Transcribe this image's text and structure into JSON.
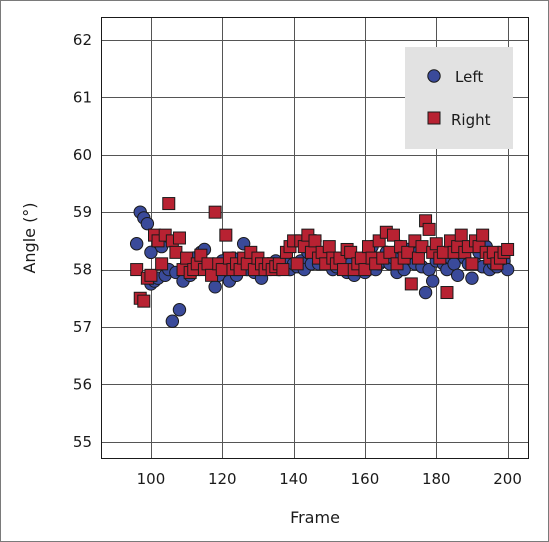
{
  "chart_data": {
    "type": "scatter",
    "title": "",
    "xlabel": "Frame",
    "ylabel": "Angle (°)",
    "xlim": [
      86,
      206
    ],
    "ylim": [
      54.7,
      62.4
    ],
    "x_ticks": [
      100,
      120,
      140,
      160,
      180,
      200
    ],
    "y_ticks": [
      55,
      56,
      57,
      58,
      59,
      60,
      61,
      62
    ],
    "grid": true,
    "legend_position": "top-right",
    "series": [
      {
        "name": "Left",
        "marker": "circle",
        "color": "#3a4a9a",
        "points": [
          [
            96,
            58.45
          ],
          [
            97,
            59.0
          ],
          [
            98,
            58.9
          ],
          [
            99,
            58.8
          ],
          [
            100,
            58.3
          ],
          [
            100,
            57.75
          ],
          [
            101,
            57.8
          ],
          [
            102,
            57.85
          ],
          [
            103,
            58.4
          ],
          [
            104,
            57.9
          ],
          [
            105,
            58.0
          ],
          [
            106,
            57.1
          ],
          [
            107,
            57.95
          ],
          [
            108,
            57.3
          ],
          [
            109,
            57.8
          ],
          [
            110,
            58.1
          ],
          [
            111,
            57.9
          ],
          [
            112,
            58.2
          ],
          [
            113,
            58.1
          ],
          [
            114,
            58.3
          ],
          [
            115,
            58.35
          ],
          [
            116,
            58.0
          ],
          [
            117,
            57.95
          ],
          [
            118,
            57.7
          ],
          [
            119,
            57.9
          ],
          [
            120,
            58.15
          ],
          [
            121,
            58.0
          ],
          [
            122,
            57.8
          ],
          [
            123,
            58.2
          ],
          [
            124,
            57.9
          ],
          [
            125,
            58.1
          ],
          [
            126,
            58.45
          ],
          [
            127,
            58.0
          ],
          [
            128,
            58.2
          ],
          [
            129,
            57.95
          ],
          [
            130,
            58.1
          ],
          [
            131,
            57.85
          ],
          [
            132,
            58.0
          ],
          [
            133,
            58.1
          ],
          [
            134,
            58.05
          ],
          [
            135,
            58.15
          ],
          [
            136,
            58.0
          ],
          [
            137,
            58.05
          ],
          [
            138,
            58.1
          ],
          [
            139,
            58.0
          ],
          [
            140,
            58.1
          ],
          [
            141,
            58.05
          ],
          [
            142,
            58.15
          ],
          [
            143,
            58.0
          ],
          [
            144,
            58.3
          ],
          [
            145,
            58.1
          ],
          [
            146,
            58.5
          ],
          [
            147,
            58.1
          ],
          [
            148,
            58.2
          ],
          [
            149,
            58.3
          ],
          [
            150,
            58.2
          ],
          [
            151,
            58.0
          ],
          [
            152,
            58.05
          ],
          [
            153,
            58.15
          ],
          [
            154,
            58.0
          ],
          [
            155,
            57.95
          ],
          [
            156,
            58.1
          ],
          [
            157,
            57.9
          ],
          [
            158,
            58.0
          ],
          [
            159,
            58.1
          ],
          [
            160,
            57.95
          ],
          [
            161,
            58.3
          ],
          [
            162,
            58.4
          ],
          [
            163,
            58.0
          ],
          [
            164,
            58.1
          ],
          [
            165,
            58.15
          ],
          [
            166,
            58.3
          ],
          [
            167,
            58.1
          ],
          [
            168,
            58.2
          ],
          [
            169,
            57.95
          ],
          [
            170,
            58.4
          ],
          [
            171,
            58.0
          ],
          [
            172,
            58.35
          ],
          [
            173,
            58.2
          ],
          [
            174,
            58.1
          ],
          [
            175,
            58.3
          ],
          [
            176,
            58.05
          ],
          [
            177,
            57.6
          ],
          [
            178,
            58.0
          ],
          [
            179,
            57.8
          ],
          [
            180,
            58.15
          ],
          [
            181,
            58.3
          ],
          [
            182,
            58.1
          ],
          [
            183,
            58.0
          ],
          [
            184,
            58.2
          ],
          [
            185,
            58.1
          ],
          [
            186,
            57.9
          ],
          [
            187,
            58.3
          ],
          [
            188,
            58.2
          ],
          [
            189,
            58.1
          ],
          [
            190,
            57.85
          ],
          [
            191,
            58.1
          ],
          [
            192,
            58.3
          ],
          [
            193,
            58.05
          ],
          [
            194,
            58.4
          ],
          [
            195,
            58.0
          ],
          [
            196,
            58.1
          ],
          [
            197,
            58.05
          ],
          [
            198,
            58.2
          ],
          [
            199,
            58.15
          ],
          [
            200,
            58.0
          ]
        ]
      },
      {
        "name": "Right",
        "marker": "square",
        "color": "#b82232",
        "points": [
          [
            96,
            58.0
          ],
          [
            97,
            57.5
          ],
          [
            98,
            57.45
          ],
          [
            99,
            57.85
          ],
          [
            100,
            57.9
          ],
          [
            101,
            58.6
          ],
          [
            102,
            58.5
          ],
          [
            103,
            58.1
          ],
          [
            104,
            58.6
          ],
          [
            105,
            59.15
          ],
          [
            106,
            58.5
          ],
          [
            107,
            58.3
          ],
          [
            108,
            58.55
          ],
          [
            109,
            58.0
          ],
          [
            110,
            58.2
          ],
          [
            111,
            57.95
          ],
          [
            112,
            58.0
          ],
          [
            113,
            58.1
          ],
          [
            114,
            58.25
          ],
          [
            115,
            58.0
          ],
          [
            116,
            58.1
          ],
          [
            117,
            57.9
          ],
          [
            118,
            59.0
          ],
          [
            119,
            58.1
          ],
          [
            120,
            58.0
          ],
          [
            121,
            58.6
          ],
          [
            122,
            58.2
          ],
          [
            123,
            58.0
          ],
          [
            124,
            58.1
          ],
          [
            125,
            58.0
          ],
          [
            126,
            58.2
          ],
          [
            127,
            58.1
          ],
          [
            128,
            58.3
          ],
          [
            129,
            58.0
          ],
          [
            130,
            58.2
          ],
          [
            131,
            58.1
          ],
          [
            132,
            58.0
          ],
          [
            133,
            58.1
          ],
          [
            134,
            58.0
          ],
          [
            135,
            58.05
          ],
          [
            136,
            58.1
          ],
          [
            137,
            58.0
          ],
          [
            138,
            58.3
          ],
          [
            139,
            58.4
          ],
          [
            140,
            58.5
          ],
          [
            141,
            58.1
          ],
          [
            142,
            58.5
          ],
          [
            143,
            58.4
          ],
          [
            144,
            58.6
          ],
          [
            145,
            58.3
          ],
          [
            146,
            58.5
          ],
          [
            147,
            58.2
          ],
          [
            148,
            58.3
          ],
          [
            149,
            58.1
          ],
          [
            150,
            58.4
          ],
          [
            151,
            58.2
          ],
          [
            152,
            58.1
          ],
          [
            153,
            58.2
          ],
          [
            154,
            58.0
          ],
          [
            155,
            58.35
          ],
          [
            156,
            58.3
          ],
          [
            157,
            58.0
          ],
          [
            158,
            58.1
          ],
          [
            159,
            58.2
          ],
          [
            160,
            58.0
          ],
          [
            161,
            58.4
          ],
          [
            162,
            58.2
          ],
          [
            163,
            58.1
          ],
          [
            164,
            58.5
          ],
          [
            165,
            58.2
          ],
          [
            166,
            58.65
          ],
          [
            167,
            58.3
          ],
          [
            168,
            58.6
          ],
          [
            169,
            58.1
          ],
          [
            170,
            58.4
          ],
          [
            171,
            58.2
          ],
          [
            172,
            58.3
          ],
          [
            173,
            57.75
          ],
          [
            174,
            58.5
          ],
          [
            175,
            58.2
          ],
          [
            176,
            58.4
          ],
          [
            177,
            58.85
          ],
          [
            178,
            58.7
          ],
          [
            179,
            58.3
          ],
          [
            180,
            58.45
          ],
          [
            181,
            58.2
          ],
          [
            182,
            58.3
          ],
          [
            183,
            57.6
          ],
          [
            184,
            58.5
          ],
          [
            185,
            58.3
          ],
          [
            186,
            58.4
          ],
          [
            187,
            58.6
          ],
          [
            188,
            58.3
          ],
          [
            189,
            58.4
          ],
          [
            190,
            58.1
          ],
          [
            191,
            58.5
          ],
          [
            192,
            58.4
          ],
          [
            193,
            58.6
          ],
          [
            194,
            58.3
          ],
          [
            195,
            58.2
          ],
          [
            196,
            58.3
          ],
          [
            197,
            58.1
          ],
          [
            198,
            58.2
          ],
          [
            199,
            58.3
          ],
          [
            200,
            58.35
          ]
        ]
      }
    ]
  }
}
